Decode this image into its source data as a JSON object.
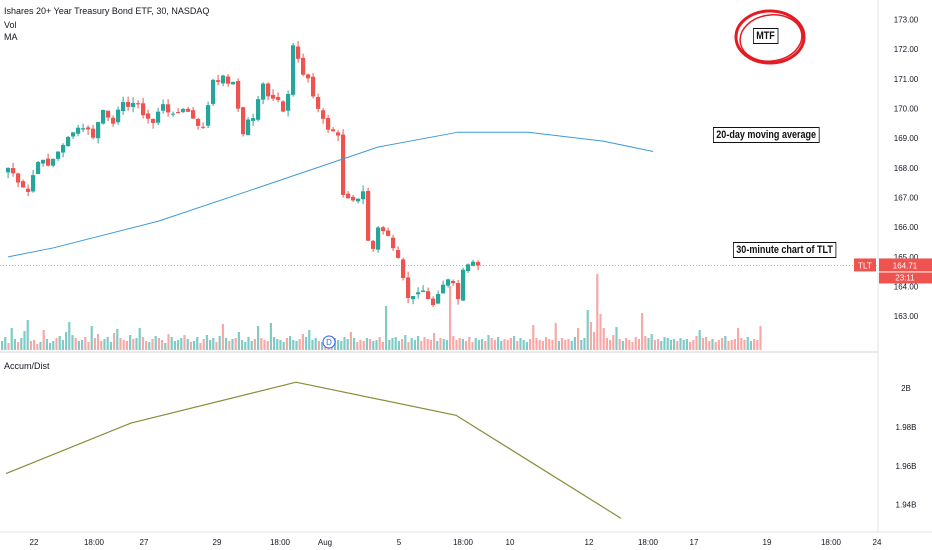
{
  "header": {
    "symbol_line": "Ishares 20+ Year Treasury Bond ETF, 30, NASDAQ",
    "vol_label": "Vol",
    "ma_label": "MA"
  },
  "annotations": {
    "mtf": "MTF",
    "ma20": "20-day moving average",
    "tlt30": "30-minute chart of TLT"
  },
  "colors": {
    "up": "#26a69a",
    "down": "#ef5350",
    "vol_up": "#80cbc4",
    "vol_down": "#f7a9a7",
    "ma_line": "#3d9bd6",
    "ad_line": "#8b8b3a",
    "price_tag": "#ef5350",
    "circle": "#e31b23"
  },
  "chart_data": [
    {
      "type": "candlestick",
      "title": "",
      "symbol": "TLT",
      "interval": "30",
      "exchange": "NASDAQ",
      "last_price": "164.71",
      "countdown": "23:11",
      "x_ticks": [
        "22",
        "18:00",
        "27",
        "29",
        "18:00",
        "Aug",
        "5",
        "18:00",
        "10",
        "12",
        "18:00",
        "17",
        "19",
        "18:00",
        "24"
      ],
      "y_ticks": [
        "173.00",
        "172.00",
        "171.00",
        "170.00",
        "169.00",
        "168.00",
        "167.00",
        "166.00",
        "165.00",
        "164.00",
        "163.00"
      ],
      "ylim": [
        162.4,
        173.25
      ],
      "grid": false,
      "volume_marker": "D",
      "candle_path": [
        [
          0,
          168.0
        ],
        [
          2,
          167.6
        ],
        [
          4,
          167.2
        ],
        [
          6,
          168.3
        ],
        [
          8,
          168.05
        ],
        [
          10,
          168.6
        ],
        [
          11,
          168.7
        ],
        [
          13,
          169.3
        ],
        [
          15,
          169.4
        ],
        [
          17,
          169.1
        ],
        [
          19,
          169.95
        ],
        [
          21,
          169.6
        ],
        [
          23,
          170.1
        ],
        [
          25,
          170.2
        ],
        [
          27,
          169.85
        ],
        [
          29,
          169.5
        ],
        [
          31,
          170.2
        ],
        [
          33,
          169.7
        ],
        [
          35,
          170.05
        ],
        [
          37,
          169.7
        ],
        [
          39,
          169.3
        ],
        [
          41,
          171.0
        ],
        [
          43,
          171.0
        ],
        [
          45,
          170.8
        ],
        [
          46,
          170.0
        ],
        [
          47,
          169.2
        ],
        [
          48,
          169.6
        ],
        [
          49,
          169.7
        ],
        [
          51,
          170.8
        ],
        [
          52,
          170.5
        ],
        [
          54,
          170.3
        ],
        [
          55,
          170.0
        ],
        [
          56,
          170.6
        ],
        [
          57,
          172.15
        ],
        [
          59,
          171.1
        ],
        [
          60,
          170.9
        ],
        [
          62,
          170.0
        ],
        [
          64,
          169.3
        ],
        [
          65,
          169.15
        ],
        [
          66,
          169.1
        ],
        [
          67,
          167.1
        ],
        [
          70,
          166.9
        ],
        [
          71,
          167.3
        ],
        [
          72,
          165.6
        ],
        [
          73,
          165.2
        ],
        [
          74,
          165.9
        ],
        [
          76,
          165.6
        ],
        [
          77,
          165.2
        ],
        [
          78,
          164.9
        ],
        [
          80,
          163.6
        ],
        [
          81,
          163.8
        ],
        [
          83,
          163.9
        ],
        [
          85,
          163.4
        ],
        [
          86,
          163.7
        ],
        [
          88,
          164.3
        ],
        [
          89,
          164.0
        ],
        [
          90,
          163.7
        ],
        [
          91,
          164.6
        ],
        [
          93,
          164.85
        ],
        [
          94,
          164.71
        ]
      ],
      "volume": [
        9,
        13,
        7,
        22,
        11,
        8,
        12,
        19,
        30,
        9,
        10,
        6,
        8,
        20,
        11,
        7,
        9,
        12,
        14,
        10,
        18,
        28,
        15,
        12,
        9,
        10,
        13,
        8,
        24,
        12,
        16,
        9,
        11,
        13,
        8,
        17,
        21,
        12,
        10,
        9,
        15,
        11,
        12,
        22,
        13,
        9,
        8,
        11,
        14,
        12,
        10,
        7,
        16,
        13,
        9,
        10,
        12,
        15,
        11,
        8,
        9,
        13,
        7,
        11,
        15,
        10,
        12,
        8,
        14,
        26,
        12,
        9,
        11,
        12,
        18,
        10,
        8,
        13,
        9,
        11,
        24,
        12,
        10,
        9,
        27,
        13,
        11,
        10,
        8,
        12,
        14,
        10,
        9,
        11,
        16,
        13,
        20,
        10,
        12,
        9,
        8,
        11,
        10,
        14,
        12,
        10,
        9,
        13,
        11,
        18,
        12,
        8,
        10,
        9,
        12,
        11,
        9,
        10,
        13,
        8,
        44,
        10,
        12,
        13,
        9,
        11,
        15,
        8,
        12,
        10,
        14,
        9,
        13,
        11,
        10,
        17,
        9,
        12,
        11,
        10,
        64,
        14,
        10,
        12,
        11,
        9,
        13,
        8,
        12,
        10,
        11,
        9,
        15,
        12,
        10,
        13,
        9,
        11,
        10,
        12,
        14,
        9,
        12,
        10,
        8,
        11,
        25,
        12,
        10,
        9,
        13,
        11,
        10,
        27,
        9,
        12,
        10,
        11,
        9,
        13,
        22,
        10,
        12,
        40,
        28,
        18,
        76,
        36,
        22,
        12,
        10,
        15,
        23,
        11,
        9,
        12,
        10,
        8,
        13,
        11,
        37,
        14,
        12,
        16,
        10,
        11,
        9,
        13,
        12,
        10,
        11,
        9,
        12,
        10,
        11,
        8,
        10,
        14,
        20,
        12,
        13,
        9,
        11,
        8,
        10,
        12,
        14,
        9,
        10,
        11,
        22,
        12,
        10,
        13,
        9,
        11,
        10,
        24,
        9
      ],
      "moving_average": {
        "name": "MA",
        "points": [
          [
            0,
            165.0
          ],
          [
            9,
            165.3
          ],
          [
            30,
            166.2
          ],
          [
            53,
            167.5
          ],
          [
            74,
            168.7
          ],
          [
            90,
            169.2
          ],
          [
            104,
            169.2
          ],
          [
            119,
            168.9
          ],
          [
            129,
            168.55
          ]
        ]
      }
    },
    {
      "type": "line",
      "title": "Accum/Dist",
      "y_ticks": [
        "2B",
        "1.98B",
        "1.96B",
        "1.94B"
      ],
      "ylim": [
        1.927,
        2.017
      ],
      "points": [
        [
          0,
          1.956
        ],
        [
          25,
          1.982
        ],
        [
          58,
          2.003
        ],
        [
          90,
          1.986
        ],
        [
          123,
          1.933
        ]
      ]
    }
  ]
}
